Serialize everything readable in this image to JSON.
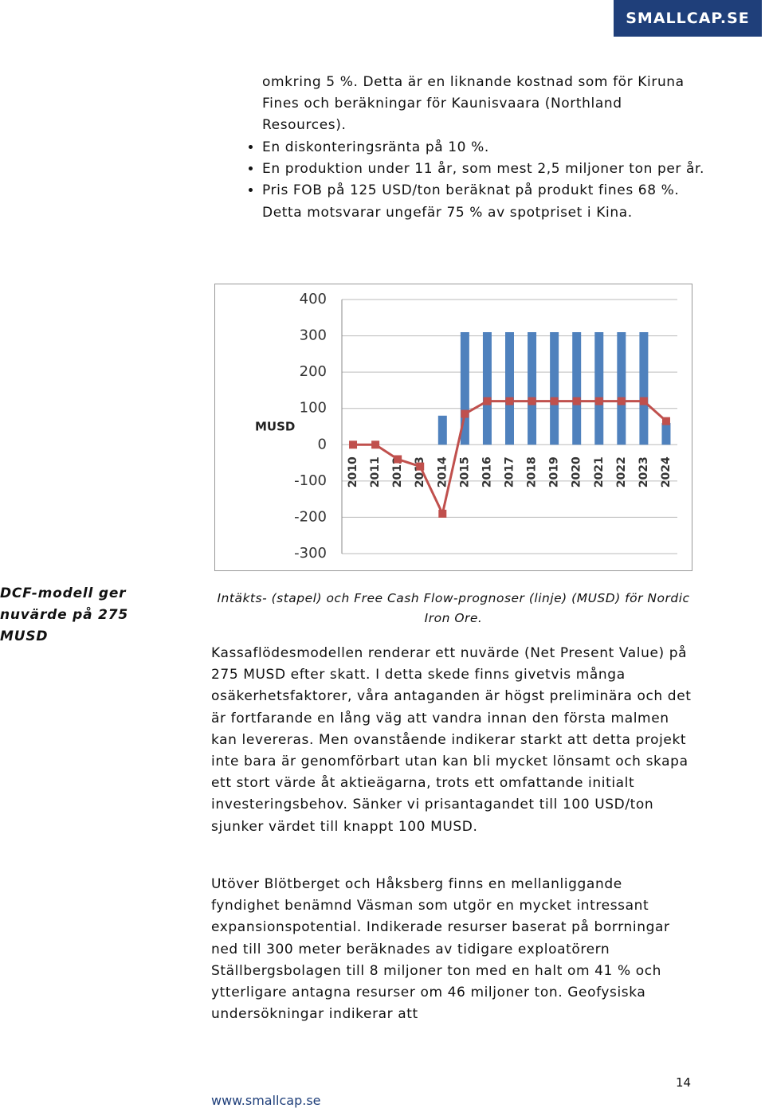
{
  "header": {
    "logo": "SMALLCAP.SE"
  },
  "intro": "omkring 5 %. Detta är en liknande kostnad som för Kiruna Fines och beräkningar för Kaunisvaara (Northland Resources).",
  "bullets": [
    "En diskonteringsränta på 10 %.",
    "En produktion under 11 år, som mest 2,5 miljoner ton per år.",
    "Pris FOB på 125 USD/ton beräknat på produkt fines 68 %. Detta motsvarar ungefär 75 % av spotpriset i Kina."
  ],
  "chart_data": {
    "type": "bar",
    "ylabel": "MUSD",
    "categories": [
      "2010",
      "2011",
      "2012",
      "2013",
      "2014",
      "2015",
      "2016",
      "2017",
      "2018",
      "2019",
      "2020",
      "2021",
      "2022",
      "2023",
      "2024"
    ],
    "series": [
      {
        "type": "bar",
        "color": "#4f81bd",
        "values": [
          null,
          null,
          null,
          null,
          80,
          310,
          310,
          310,
          310,
          310,
          310,
          310,
          310,
          310,
          60
        ]
      },
      {
        "type": "line",
        "color": "#c0504d",
        "values": [
          0,
          0,
          -40,
          -60,
          -190,
          85,
          120,
          120,
          120,
          120,
          120,
          120,
          120,
          120,
          65
        ]
      }
    ],
    "ylim": [
      -300,
      400
    ],
    "yticks": [
      -300,
      -200,
      -100,
      0,
      100,
      200,
      300,
      400
    ],
    "grid": true
  },
  "sidebar": "DCF-modell ger nuvärde på 275 MUSD",
  "caption": "Intäkts- (stapel) och Free Cash Flow-prognoser (linje) (MUSD) för Nordic Iron Ore.",
  "paragraphs": [
    "Kassaflödesmodellen renderar ett nuvärde (Net Present Value) på 275 MUSD efter skatt. I detta skede finns givetvis många osäkerhetsfaktorer, våra antaganden är högst preliminära och det är fortfarande en lång väg att vandra innan den första malmen kan levereras. Men ovanstående indikerar starkt att detta projekt inte bara är genomförbart utan kan bli mycket lönsamt och skapa ett stort värde åt aktieägarna, trots ett omfattande initialt investeringsbehov. Sänker vi prisantagandet till 100 USD/ton sjunker värdet till knappt 100 MUSD.",
    "Utöver Blötberget och Håksberg finns en mellanliggande fyndighet benämnd Väsman som utgör en mycket intressant expansionspotential. Indikerade resurser baserat på borrningar ned till 300 meter beräknades av tidigare exploatörern Ställbergsbolagen till 8 miljoner ton med en halt om 41 % och ytterligare antagna resurser om 46 miljoner ton. Geofysiska undersökningar indikerar att"
  ],
  "footer": {
    "url": "www.smallcap.se",
    "page": "14"
  }
}
